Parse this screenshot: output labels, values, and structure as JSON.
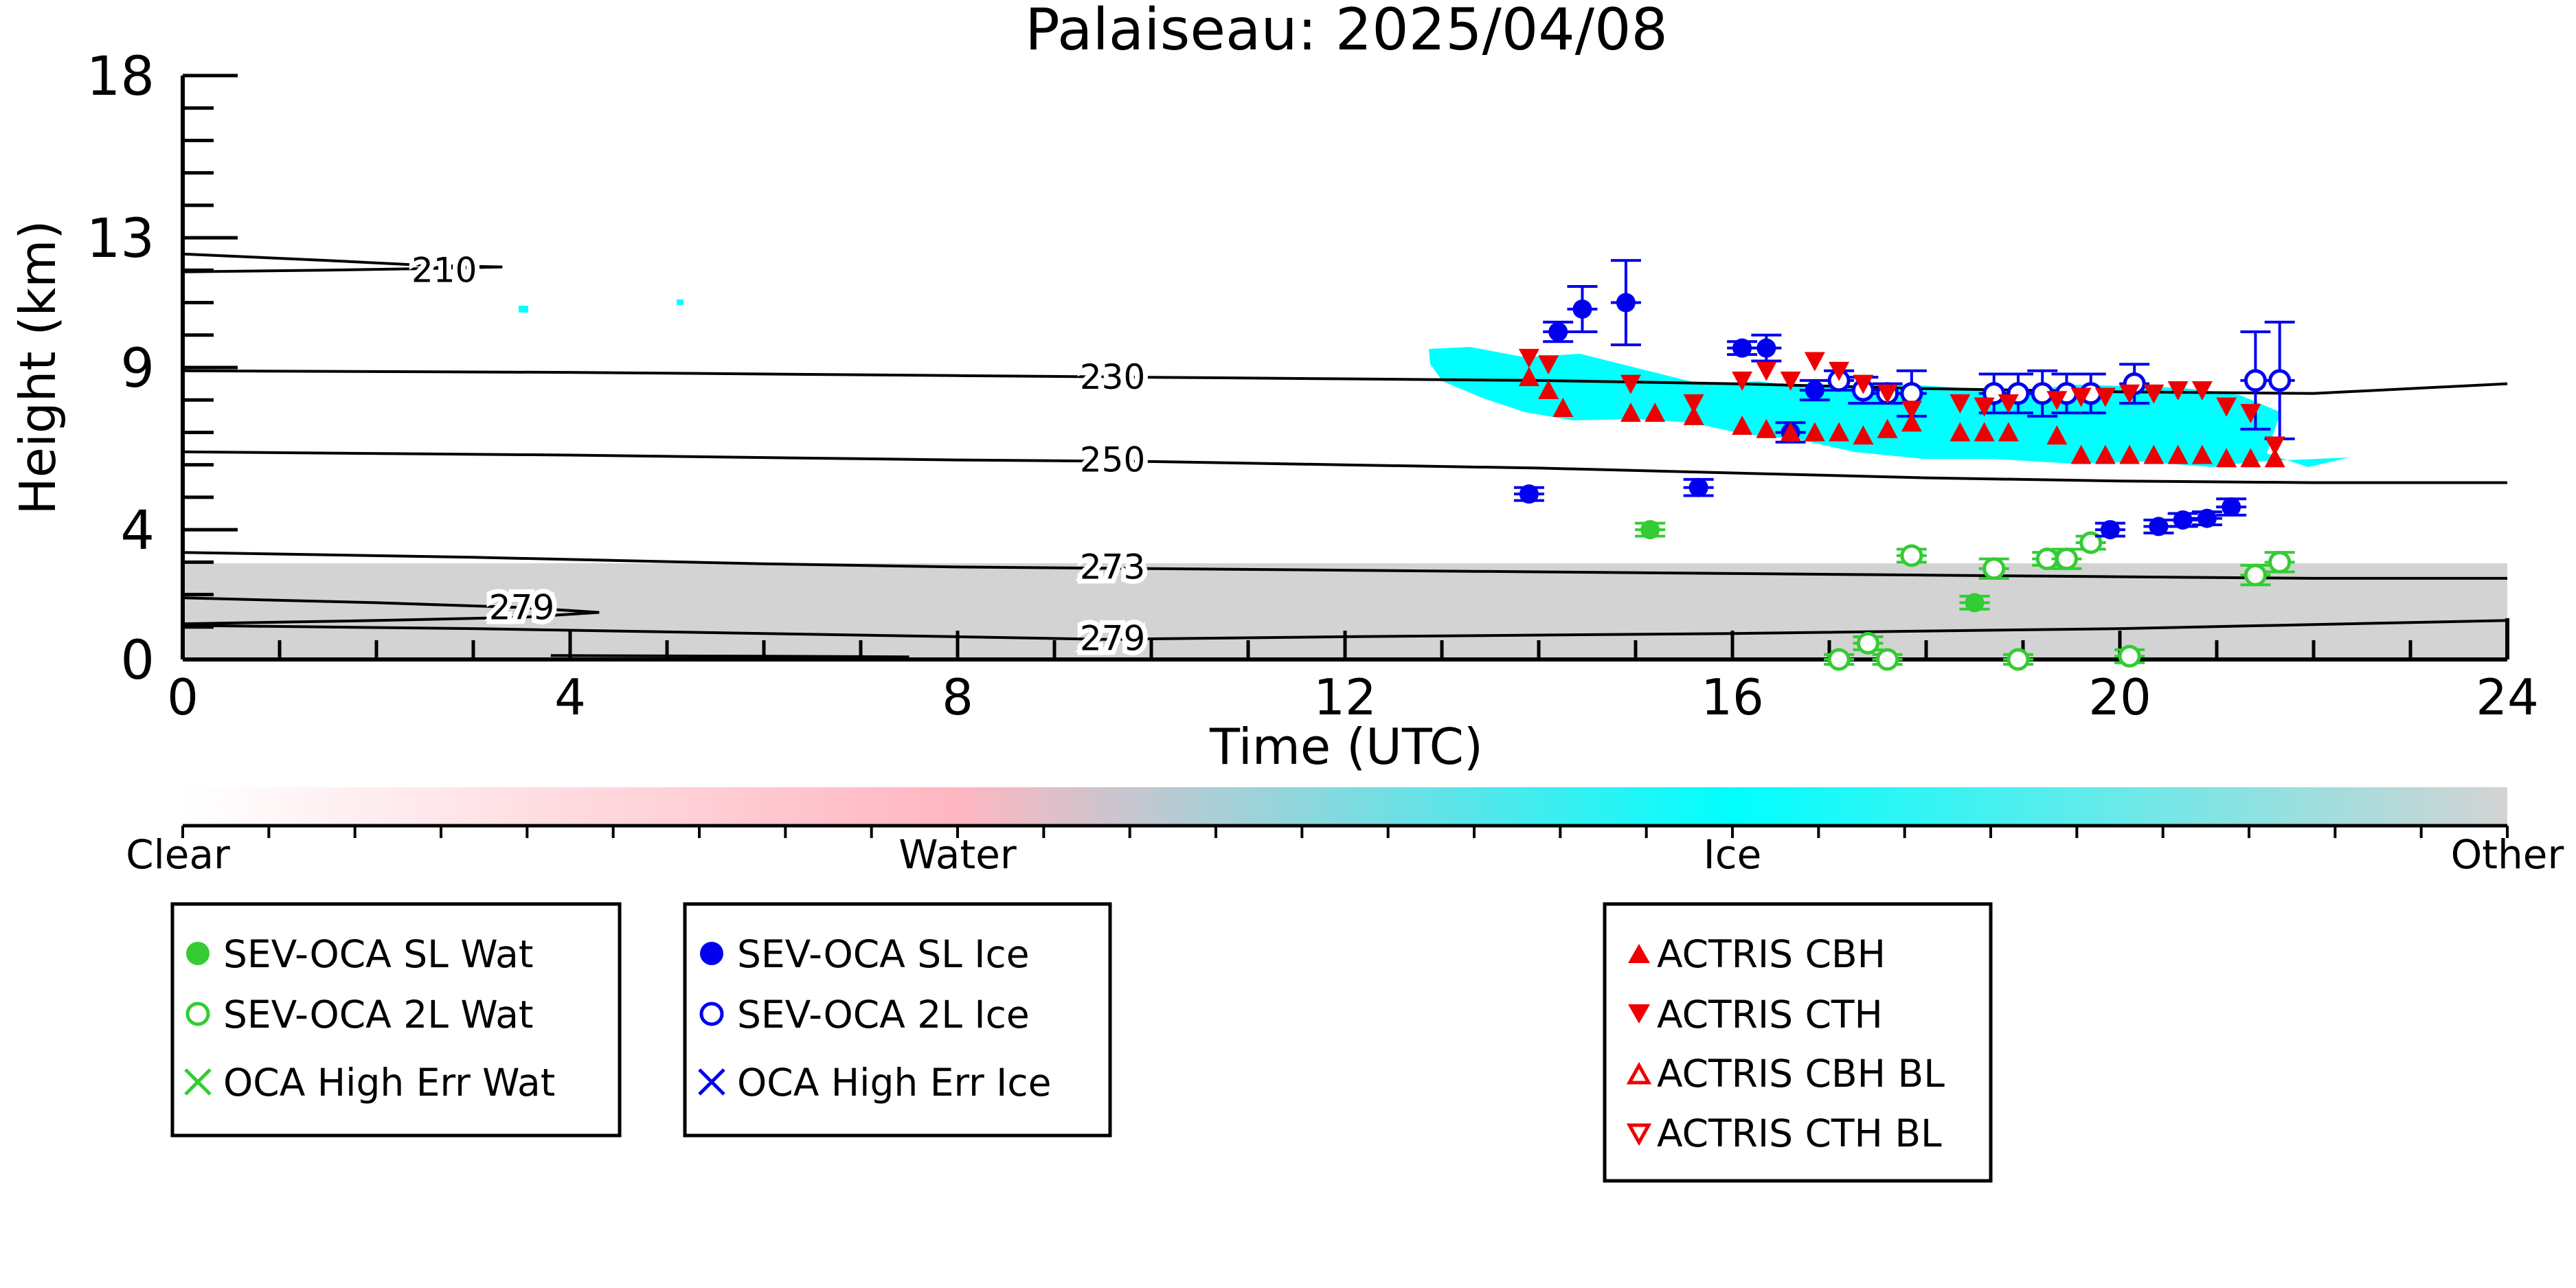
{
  "chart_data": {
    "type": "scatter",
    "title": "Palaiseau: 2025/04/08",
    "xlabel": "Time (UTC)",
    "ylabel": "Height (km)",
    "xlim": [
      0,
      24
    ],
    "ylim": [
      0,
      18
    ],
    "xticks": [
      0,
      4,
      8,
      12,
      16,
      20,
      24
    ],
    "xtick_labels": [
      "0",
      "4",
      "8",
      "12",
      "16",
      "20",
      "24"
    ],
    "yticks": [
      0,
      4,
      9,
      13,
      18
    ],
    "ytick_labels": [
      "0",
      "4",
      "9",
      "13",
      "18"
    ],
    "colorbar": {
      "labels": [
        "Clear",
        "Water",
        "Ice",
        "Other"
      ],
      "colors": [
        "#ffffff",
        "#ffb6c1",
        "#00ffff",
        "#d3d3d3"
      ]
    },
    "contours": [
      {
        "label": "210",
        "points": [
          [
            0,
            12.5
          ],
          [
            1.5,
            12.3
          ],
          [
            2.5,
            12.15
          ],
          [
            3.3,
            12.1
          ],
          [
            2.5,
            12.05
          ],
          [
            1.5,
            12.0
          ],
          [
            0,
            11.95
          ]
        ],
        "label_at": [
          2.7,
          12.0
        ]
      },
      {
        "label": "230",
        "points": [
          [
            0,
            8.9
          ],
          [
            4,
            8.85
          ],
          [
            8,
            8.75
          ],
          [
            10,
            8.7
          ],
          [
            12,
            8.65
          ],
          [
            14,
            8.6
          ],
          [
            16,
            8.5
          ],
          [
            18,
            8.35
          ],
          [
            20,
            8.25
          ],
          [
            22,
            8.2
          ],
          [
            24,
            8.5
          ]
        ],
        "label_at": [
          9.6,
          8.7
        ]
      },
      {
        "label": "250",
        "points": [
          [
            0,
            6.4
          ],
          [
            4,
            6.3
          ],
          [
            8,
            6.15
          ],
          [
            10,
            6.1
          ],
          [
            12,
            6.0
          ],
          [
            14,
            5.9
          ],
          [
            16,
            5.75
          ],
          [
            18,
            5.6
          ],
          [
            20,
            5.5
          ],
          [
            22,
            5.45
          ],
          [
            24,
            5.45
          ]
        ],
        "label_at": [
          9.6,
          6.15
        ]
      },
      {
        "label": "273",
        "points": [
          [
            0,
            3.3
          ],
          [
            3,
            3.15
          ],
          [
            6,
            2.95
          ],
          [
            8,
            2.85
          ],
          [
            10,
            2.8
          ],
          [
            12,
            2.75
          ],
          [
            14,
            2.7
          ],
          [
            16,
            2.65
          ],
          [
            18,
            2.6
          ],
          [
            20,
            2.55
          ],
          [
            22,
            2.5
          ],
          [
            24,
            2.5
          ]
        ],
        "label_at": [
          9.6,
          2.85
        ]
      },
      {
        "label": "279",
        "points": [
          [
            0,
            1.9
          ],
          [
            2,
            1.75
          ],
          [
            3.5,
            1.6
          ],
          [
            4.3,
            1.45
          ],
          [
            3.5,
            1.3
          ],
          [
            2,
            1.2
          ],
          [
            0,
            1.1
          ]
        ],
        "label_at": [
          3.5,
          1.6
        ]
      },
      {
        "label": "279",
        "points": [
          [
            0,
            1.05
          ],
          [
            3,
            0.95
          ],
          [
            6,
            0.8
          ],
          [
            8,
            0.7
          ],
          [
            9.5,
            0.62
          ],
          [
            12,
            0.7
          ],
          [
            16,
            0.8
          ],
          [
            20,
            0.95
          ],
          [
            24,
            1.2
          ]
        ],
        "label_at": [
          9.6,
          0.65
        ]
      },
      {
        "label": "",
        "points": [
          [
            3.8,
            0.12
          ],
          [
            6,
            0.1
          ],
          [
            7.5,
            0.08
          ]
        ],
        "label_at": null
      }
    ],
    "series": [
      {
        "name": "SEV-OCA SL Wat",
        "marker": "filled-circle",
        "color": "#33cc33",
        "points": [
          [
            15.15,
            4.0,
            0.2
          ],
          [
            18.5,
            1.75,
            0.2
          ]
        ]
      },
      {
        "name": "SEV-OCA 2L Wat",
        "marker": "open-circle",
        "color": "#33cc33",
        "points": [
          [
            17.1,
            0.0,
            0.15
          ],
          [
            17.4,
            0.5,
            0.2
          ],
          [
            17.6,
            0.0,
            0.15
          ],
          [
            17.85,
            3.2,
            0.2
          ],
          [
            18.7,
            2.8,
            0.3
          ],
          [
            18.95,
            0.0,
            0.15
          ],
          [
            19.25,
            3.1,
            0.2
          ],
          [
            19.45,
            3.1,
            0.3
          ],
          [
            19.7,
            3.6,
            0.2
          ],
          [
            20.1,
            0.1,
            0.2
          ],
          [
            21.4,
            2.6,
            0.3
          ],
          [
            21.65,
            3.0,
            0.3
          ]
        ]
      },
      {
        "name": "OCA High Err Wat",
        "marker": "x",
        "color": "#33cc33",
        "points": []
      },
      {
        "name": "SEV-OCA SL Ice",
        "marker": "filled-circle",
        "color": "#0000ee",
        "points": [
          [
            13.9,
            5.1,
            0.2
          ],
          [
            14.2,
            10.1,
            0.3
          ],
          [
            14.45,
            10.8,
            0.7
          ],
          [
            14.9,
            11.0,
            1.3
          ],
          [
            15.65,
            5.3,
            0.25
          ],
          [
            16.1,
            9.6,
            0.2
          ],
          [
            16.35,
            9.6,
            0.4
          ],
          [
            16.6,
            7.0,
            0.3
          ],
          [
            16.85,
            8.3,
            0.3
          ],
          [
            19.9,
            4.0,
            0.2
          ],
          [
            20.4,
            4.1,
            0.2
          ],
          [
            20.65,
            4.3,
            0.2
          ],
          [
            20.9,
            4.35,
            0.2
          ],
          [
            21.15,
            4.7,
            0.25
          ]
        ]
      },
      {
        "name": "SEV-OCA 2L Ice",
        "marker": "open-circle",
        "color": "#0000ee",
        "points": [
          [
            17.1,
            8.6,
            0.3
          ],
          [
            17.35,
            8.3,
            0.4
          ],
          [
            17.6,
            8.2,
            0.3
          ],
          [
            17.85,
            8.2,
            0.7
          ],
          [
            18.7,
            8.2,
            0.6
          ],
          [
            18.95,
            8.2,
            0.6
          ],
          [
            19.2,
            8.2,
            0.7
          ],
          [
            19.45,
            8.2,
            0.6
          ],
          [
            19.7,
            8.2,
            0.6
          ],
          [
            20.15,
            8.5,
            0.6
          ],
          [
            21.4,
            8.6,
            1.5
          ],
          [
            21.65,
            8.6,
            1.8
          ]
        ]
      },
      {
        "name": "OCA High Err Ice",
        "marker": "x",
        "color": "#0000ee",
        "points": []
      },
      {
        "name": "ACTRIS CBH",
        "marker": "triangle-up",
        "color": "#ee0000",
        "points": [
          [
            13.9,
            8.7
          ],
          [
            14.1,
            8.3
          ],
          [
            14.25,
            7.75
          ],
          [
            14.95,
            7.6
          ],
          [
            15.2,
            7.6
          ],
          [
            15.6,
            7.5
          ],
          [
            16.1,
            7.2
          ],
          [
            16.35,
            7.1
          ],
          [
            16.6,
            7.0
          ],
          [
            16.85,
            7.0
          ],
          [
            17.1,
            7.0
          ],
          [
            17.35,
            6.9
          ],
          [
            17.6,
            7.1
          ],
          [
            17.85,
            7.3
          ],
          [
            18.35,
            7.0
          ],
          [
            18.6,
            7.0
          ],
          [
            18.85,
            7.0
          ],
          [
            19.35,
            6.9
          ],
          [
            19.6,
            6.3
          ],
          [
            19.85,
            6.3
          ],
          [
            20.1,
            6.3
          ],
          [
            20.35,
            6.3
          ],
          [
            20.6,
            6.3
          ],
          [
            20.85,
            6.3
          ],
          [
            21.1,
            6.2
          ],
          [
            21.35,
            6.2
          ],
          [
            21.6,
            6.2
          ]
        ]
      },
      {
        "name": "ACTRIS CTH",
        "marker": "triangle-down",
        "color": "#ee0000",
        "points": [
          [
            13.9,
            9.3
          ],
          [
            14.1,
            9.1
          ],
          [
            14.95,
            8.5
          ],
          [
            15.6,
            7.9
          ],
          [
            16.1,
            8.6
          ],
          [
            16.35,
            8.9
          ],
          [
            16.6,
            8.6
          ],
          [
            16.85,
            9.2
          ],
          [
            17.1,
            8.9
          ],
          [
            17.35,
            8.5
          ],
          [
            17.6,
            8.2
          ],
          [
            17.85,
            7.7
          ],
          [
            18.35,
            7.9
          ],
          [
            18.6,
            7.8
          ],
          [
            18.85,
            7.9
          ],
          [
            19.35,
            8.0
          ],
          [
            19.6,
            8.1
          ],
          [
            19.85,
            8.1
          ],
          [
            20.1,
            8.2
          ],
          [
            20.35,
            8.2
          ],
          [
            20.6,
            8.3
          ],
          [
            20.85,
            8.3
          ],
          [
            21.1,
            7.8
          ],
          [
            21.35,
            7.6
          ],
          [
            21.6,
            6.6
          ]
        ]
      },
      {
        "name": "ACTRIS CBH BL",
        "marker": "open-triangle-up",
        "color": "#ee0000",
        "points": []
      },
      {
        "name": "ACTRIS CTH BL",
        "marker": "open-triangle-down",
        "color": "#ee0000",
        "points": []
      }
    ],
    "legends": [
      {
        "entries": [
          "SEV-OCA SL Wat",
          "SEV-OCA 2L Wat",
          "OCA High Err Wat"
        ]
      },
      {
        "entries": [
          "SEV-OCA SL Ice",
          "SEV-OCA 2L Ice",
          "OCA High Err Ice"
        ]
      },
      {
        "entries": [
          "ACTRIS CBH",
          "ACTRIS CTH",
          "ACTRIS CBH BL",
          "ACTRIS CTH BL"
        ]
      }
    ]
  }
}
